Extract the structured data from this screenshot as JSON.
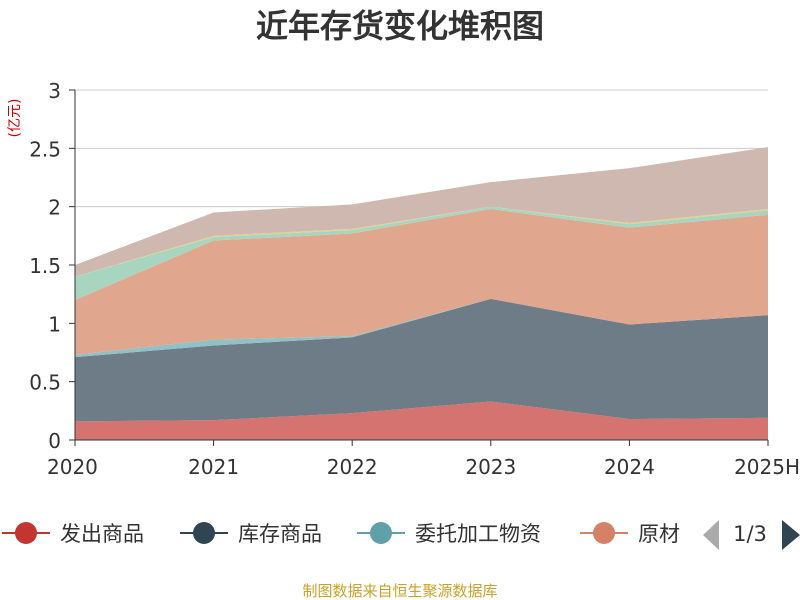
{
  "title": "近年存货变化堆积图",
  "source": "制图数据来自恒生聚源数据库",
  "colors": {
    "title": "#333333",
    "ylabel": "#cc0000",
    "source": "#c9a227",
    "grid": "#cccccc",
    "axis": "#333333",
    "pager_active": "#2f4554",
    "pager_inactive": "#aaaaaa"
  },
  "legend": {
    "items": [
      {
        "label": "发出商品",
        "color": "#c23531"
      },
      {
        "label": "库存商品",
        "color": "#2f4554"
      },
      {
        "label": "委托加工物资",
        "color": "#61a0a8"
      },
      {
        "label": "原材",
        "color": "#d48265"
      }
    ],
    "pager": "1/3"
  },
  "chart_data": {
    "type": "area",
    "stacked": true,
    "ylabel": "(亿元)",
    "categories": [
      "2020",
      "2021",
      "2022",
      "2023",
      "2024",
      "2025H"
    ],
    "ylim": [
      0,
      3
    ],
    "yticks": [
      0,
      0.5,
      1,
      1.5,
      2,
      2.5,
      3
    ],
    "grid": true,
    "legend_position": "bottom",
    "series": [
      {
        "name": "发出商品",
        "color": "#d4736f",
        "values": [
          0.16,
          0.17,
          0.23,
          0.33,
          0.18,
          0.19
        ]
      },
      {
        "name": "库存商品",
        "color": "#6e7c87",
        "values": [
          0.55,
          0.64,
          0.65,
          0.88,
          0.81,
          0.88
        ]
      },
      {
        "name": "委托加工物资",
        "color": "#8fc1c6",
        "values": [
          0.02,
          0.05,
          0.01,
          0.0,
          0.0,
          0.0
        ]
      },
      {
        "name": "原材",
        "color": "#e0a68e",
        "values": [
          0.47,
          0.85,
          0.88,
          0.77,
          0.83,
          0.86
        ]
      },
      {
        "name": "",
        "color": "#a8d5c0",
        "values": [
          0.2,
          0.03,
          0.03,
          0.02,
          0.03,
          0.04
        ]
      },
      {
        "name": "",
        "color": "#e6d088",
        "values": [
          0.0,
          0.01,
          0.01,
          0.0,
          0.01,
          0.01
        ]
      },
      {
        "name": "",
        "color": "#cfb8b0",
        "values": [
          0.1,
          0.2,
          0.21,
          0.21,
          0.47,
          0.53
        ]
      }
    ]
  }
}
